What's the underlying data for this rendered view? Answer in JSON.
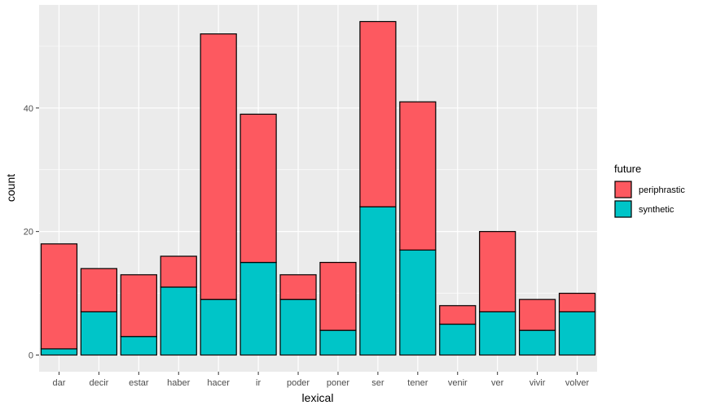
{
  "chart_data": {
    "type": "bar",
    "stacked": true,
    "categories": [
      "dar",
      "decir",
      "estar",
      "haber",
      "hacer",
      "ir",
      "poder",
      "poner",
      "ser",
      "tener",
      "venir",
      "ver",
      "vivir",
      "volver"
    ],
    "series": [
      {
        "name": "synthetic",
        "color": "#00c5c8",
        "values": [
          1,
          7,
          3,
          11,
          9,
          15,
          9,
          4,
          24,
          17,
          5,
          7,
          4,
          7
        ]
      },
      {
        "name": "periphrastic",
        "color": "#fd5960",
        "values": [
          17,
          7,
          10,
          5,
          43,
          24,
          4,
          11,
          30,
          24,
          3,
          13,
          5,
          3
        ]
      }
    ],
    "xlabel": "lexical",
    "ylabel": "count",
    "ylim": [
      -2.7,
      56.7
    ],
    "yticks": [
      0,
      20,
      40
    ],
    "grid": true,
    "legend": {
      "title": "future",
      "position": "right",
      "order": [
        "periphrastic",
        "synthetic"
      ]
    },
    "panel_background": "#ebebeb",
    "grid_color": "#ffffff",
    "bar_outline": "#000000"
  }
}
